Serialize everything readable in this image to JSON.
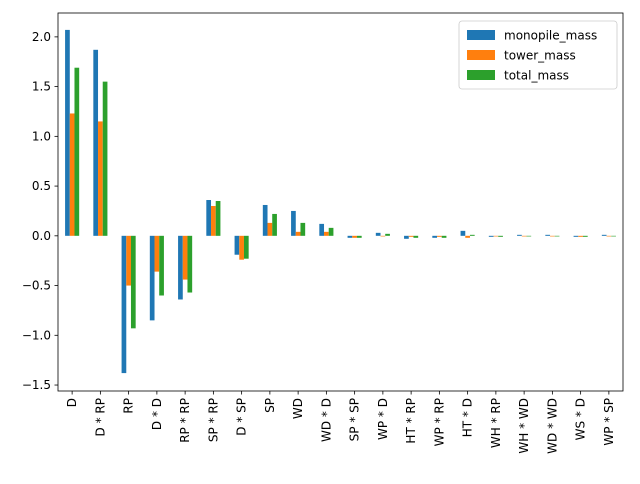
{
  "chart_data": {
    "type": "bar",
    "title": "",
    "xlabel": "",
    "ylabel": "",
    "categories": [
      "D",
      "D * RP",
      "RP",
      "D * D",
      "RP * RP",
      "SP * RP",
      "D * SP",
      "SP",
      "WD",
      "WD * D",
      "SP * SP",
      "WP * D",
      "HT * RP",
      "WP * RP",
      "HT * D",
      "WH * RP",
      "WH * WD",
      "WD * WD",
      "WS * D",
      "WP * SP"
    ],
    "series": [
      {
        "name": "monopile_mass",
        "color": "#1f77b4",
        "values": [
          2.07,
          1.87,
          -1.38,
          -0.85,
          -0.64,
          0.36,
          -0.19,
          0.31,
          0.25,
          0.12,
          -0.02,
          0.03,
          -0.03,
          -0.02,
          0.05,
          -0.01,
          0.01,
          0.01,
          -0.01,
          0.01
        ]
      },
      {
        "name": "tower_mass",
        "color": "#ff7f0e",
        "values": [
          1.23,
          1.15,
          -0.5,
          -0.36,
          -0.44,
          0.3,
          -0.24,
          0.13,
          0.04,
          0.04,
          -0.02,
          0.0,
          -0.01,
          -0.01,
          -0.02,
          0.0,
          0.0,
          0.0,
          -0.01,
          0.0
        ]
      },
      {
        "name": "total_mass",
        "color": "#2ca02c",
        "values": [
          1.69,
          1.55,
          -0.93,
          -0.6,
          -0.57,
          0.35,
          -0.23,
          0.22,
          0.13,
          0.08,
          -0.02,
          0.02,
          -0.02,
          -0.02,
          0.01,
          -0.01,
          0.0,
          0.0,
          -0.01,
          0.0
        ]
      }
    ],
    "ylim": [
      -1.56,
      2.24
    ],
    "yticks": [
      -1.5,
      -1.0,
      -0.5,
      0.0,
      0.5,
      1.0,
      1.5,
      2.0
    ],
    "ytick_labels": [
      "−1.5",
      "−1.0",
      "−0.5",
      "0.0",
      "0.5",
      "1.0",
      "1.5",
      "2.0"
    ],
    "grid": false,
    "legend_position": "top-right"
  }
}
